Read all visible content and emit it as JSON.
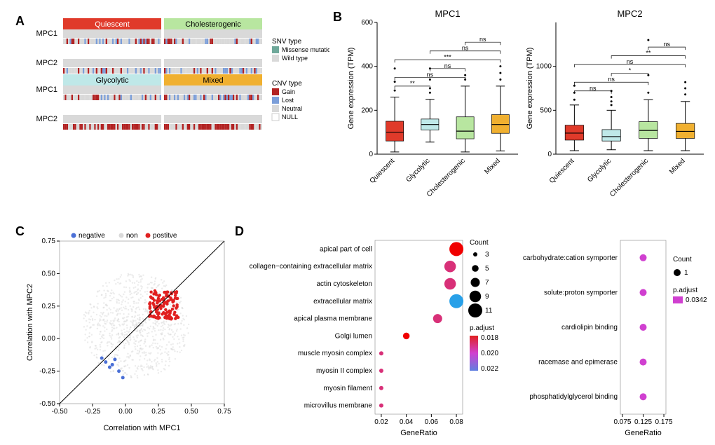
{
  "panelA": {
    "label": "A",
    "subtypes": [
      {
        "name": "Quiescent",
        "bg": "#e03a2a",
        "text": "#ffffff"
      },
      {
        "name": "Cholesterogenic",
        "bg": "#b8e6a0",
        "text": "#000000"
      },
      {
        "name": "Glycolytic",
        "bg": "#bfe8e8",
        "text": "#000000"
      },
      {
        "name": "Mixed",
        "bg": "#f0b030",
        "text": "#000000"
      }
    ],
    "genes": [
      "MPC1",
      "MPC2"
    ],
    "snv_legend_title": "SNV type",
    "snv_types": [
      {
        "label": "Missense mutation",
        "color": "#6fa89a"
      },
      {
        "label": "Wild type",
        "color": "#d9d9d9"
      }
    ],
    "cnv_legend_title": "CNV type",
    "cnv_types": [
      {
        "label": "Gain",
        "color": "#b22222"
      },
      {
        "label": "Lost",
        "color": "#7b9ed9"
      },
      {
        "label": "Neutral",
        "color": "#d9d9d9"
      },
      {
        "label": "NULL",
        "color": "#ffffff"
      }
    ],
    "cnv_bar_colors": {
      "gain": "#b22222",
      "lost": "#7b9ed9",
      "neutral": "#d9d9d9"
    },
    "snv_bg": "#d9d9d9"
  },
  "panelB": {
    "label": "B",
    "ylabel": "Gene expression (TPM)",
    "charts": [
      {
        "title": "MPC1",
        "ylim": [
          0,
          600
        ],
        "yticks": [
          0,
          200,
          400,
          600
        ],
        "categories": [
          "Quiescent",
          "Glycolytic",
          "Cholesterogenic",
          "Mixed"
        ],
        "colors": [
          "#e03a2a",
          "#bfe8e8",
          "#b8e6a0",
          "#f0b030"
        ],
        "boxes": [
          {
            "q1": 60,
            "median": 100,
            "q3": 150,
            "wlo": 10,
            "whi": 260,
            "out": [
              290,
              330,
              390
            ]
          },
          {
            "q1": 110,
            "median": 135,
            "q3": 160,
            "wlo": 55,
            "whi": 250,
            "out": [
              280,
              300,
              340,
              390
            ]
          },
          {
            "q1": 70,
            "median": 105,
            "q3": 170,
            "wlo": 10,
            "whi": 310,
            "out": [
              340,
              360
            ]
          },
          {
            "q1": 95,
            "median": 135,
            "q3": 180,
            "wlo": 15,
            "whi": 310,
            "out": [
              340,
              370,
              400
            ]
          }
        ],
        "sig": [
          {
            "i": 0,
            "j": 1,
            "label": "**",
            "y": 310
          },
          {
            "i": 0,
            "j": 2,
            "label": "ns",
            "y": 350
          },
          {
            "i": 1,
            "j": 2,
            "label": "ns",
            "y": 390
          },
          {
            "i": 0,
            "j": 3,
            "label": "***",
            "y": 430
          },
          {
            "i": 1,
            "j": 3,
            "label": "ns",
            "y": 470
          },
          {
            "i": 2,
            "j": 3,
            "label": "ns",
            "y": 510
          }
        ]
      },
      {
        "title": "MPC2",
        "ylim": [
          0,
          1500
        ],
        "yticks": [
          0,
          500,
          1000
        ],
        "categories": [
          "Quiescent",
          "Glycolytic",
          "Cholesterogenic",
          "Mixed"
        ],
        "colors": [
          "#e03a2a",
          "#bfe8e8",
          "#b8e6a0",
          "#f0b030"
        ],
        "boxes": [
          {
            "q1": 160,
            "median": 240,
            "q3": 330,
            "wlo": 40,
            "whi": 560,
            "out": [
              620,
              700,
              780
            ]
          },
          {
            "q1": 150,
            "median": 200,
            "q3": 280,
            "wlo": 50,
            "whi": 500,
            "out": [
              560,
              600,
              650,
              720
            ]
          },
          {
            "q1": 180,
            "median": 270,
            "q3": 370,
            "wlo": 40,
            "whi": 620,
            "out": [
              700,
              900,
              1300
            ]
          },
          {
            "q1": 180,
            "median": 260,
            "q3": 350,
            "wlo": 40,
            "whi": 600,
            "out": [
              680,
              750,
              820
            ]
          }
        ],
        "sig": [
          {
            "i": 0,
            "j": 1,
            "label": "ns",
            "y": 720
          },
          {
            "i": 0,
            "j": 2,
            "label": "ns",
            "y": 820
          },
          {
            "i": 1,
            "j": 2,
            "label": "*",
            "y": 920
          },
          {
            "i": 0,
            "j": 3,
            "label": "ns",
            "y": 1020
          },
          {
            "i": 1,
            "j": 3,
            "label": "**",
            "y": 1120
          },
          {
            "i": 2,
            "j": 3,
            "label": "ns",
            "y": 1220
          }
        ]
      }
    ]
  },
  "panelC": {
    "label": "C",
    "xlabel": "Correlation with MPC1",
    "ylabel": "Correlation with MPC2",
    "xlim": [
      -0.5,
      0.75
    ],
    "ylim": [
      -0.5,
      0.75
    ],
    "xticks": [
      -0.5,
      -0.25,
      0,
      0.25,
      0.5,
      0.75
    ],
    "yticks": [
      -0.5,
      -0.25,
      0,
      0.25,
      0.5,
      0.75
    ],
    "legend": [
      {
        "label": "negative",
        "color": "#4a6fd6"
      },
      {
        "label": "non",
        "color": "#d9d9d9"
      },
      {
        "label": "postitve",
        "color": "#e02020"
      }
    ],
    "non_color": "#d9d9d9",
    "pos_color": "#e02020",
    "neg_color": "#4a6fd6",
    "line_color": "#000000"
  },
  "panelD": {
    "label": "D",
    "left": {
      "terms": [
        {
          "name": "apical part of cell",
          "x": 0.08,
          "count": 11,
          "p": 0.016
        },
        {
          "name": "collagen−containing extracellular matrix",
          "x": 0.075,
          "count": 9,
          "p": 0.019
        },
        {
          "name": "actin cytoskeleton",
          "x": 0.075,
          "count": 9,
          "p": 0.019
        },
        {
          "name": "extracellular matrix",
          "x": 0.08,
          "count": 11,
          "p": 0.023
        },
        {
          "name": "apical plasma membrane",
          "x": 0.065,
          "count": 7,
          "p": 0.019
        },
        {
          "name": "Golgi lumen",
          "x": 0.04,
          "count": 5,
          "p": 0.016
        },
        {
          "name": "muscle myosin complex",
          "x": 0.02,
          "count": 3,
          "p": 0.019
        },
        {
          "name": "myosin II complex",
          "x": 0.02,
          "count": 3,
          "p": 0.019
        },
        {
          "name": "myosin filament",
          "x": 0.02,
          "count": 3,
          "p": 0.019
        },
        {
          "name": "microvillus membrane",
          "x": 0.02,
          "count": 3,
          "p": 0.019
        }
      ],
      "xlim": [
        0.015,
        0.085
      ],
      "xticks": [
        0.02,
        0.04,
        0.06,
        0.08
      ],
      "xlabel": "GeneRatio",
      "count_legend_title": "Count",
      "count_values": [
        3,
        5,
        7,
        9,
        11
      ],
      "padj_title": "p.adjust",
      "padj_range": [
        0.018,
        0.02,
        0.022
      ],
      "padj_colors": [
        "#e02020",
        "#d040d0",
        "#6080e0"
      ]
    },
    "right": {
      "terms": [
        {
          "name": "carbohydrate:cation symporter",
          "x": 0.125,
          "count": 1,
          "p": 0.0342
        },
        {
          "name": "solute:proton symporter",
          "x": 0.125,
          "count": 1,
          "p": 0.0342
        },
        {
          "name": "cardiolipin binding",
          "x": 0.125,
          "count": 1,
          "p": 0.0342
        },
        {
          "name": "racemase and epimerase",
          "x": 0.125,
          "count": 1,
          "p": 0.0342
        },
        {
          "name": "phosphatidylglycerol binding",
          "x": 0.125,
          "count": 1,
          "p": 0.0342
        }
      ],
      "xlim": [
        0.07,
        0.18
      ],
      "xticks": [
        0.075,
        0.125,
        0.175
      ],
      "xlabel": "GeneRatio",
      "count_legend_title": "Count",
      "count_values": [
        1
      ],
      "padj_title": "p.adjust",
      "padj_value": 0.0342,
      "padj_color": "#d040d0"
    }
  }
}
